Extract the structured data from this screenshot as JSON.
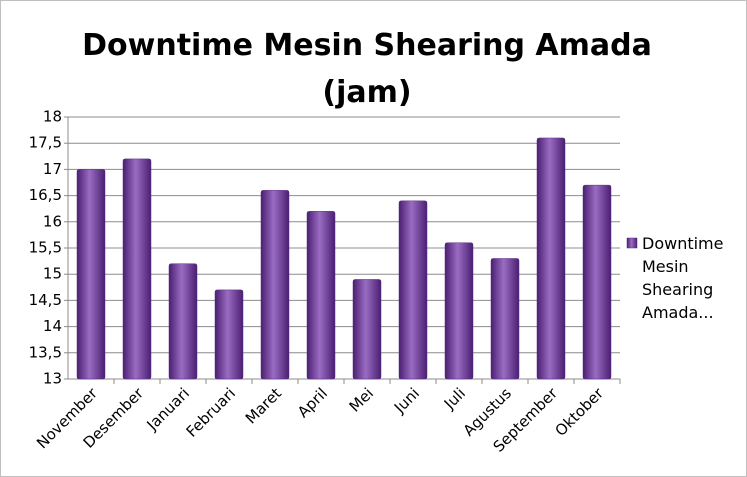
{
  "chart_data": {
    "type": "bar",
    "title": "Downtime Mesin Shearing Amada (jam)",
    "categories": [
      "November",
      "Desember",
      "Januari",
      "Februari",
      "Maret",
      "April",
      "Mei",
      "Juni",
      "Juli",
      "Agustus",
      "September",
      "Oktober"
    ],
    "series": [
      {
        "name": "Downtime Mesin Shearing Amada...",
        "color": "#7030a0",
        "values": [
          17,
          17.2,
          15.2,
          14.7,
          16.6,
          16.2,
          14.9,
          16.4,
          15.6,
          15.3,
          17.6,
          16.7
        ]
      }
    ],
    "ylim": [
      13,
      18
    ],
    "yticks": [
      13,
      {
        "value": 13.5,
        "label": "13,5"
      },
      14,
      {
        "value": 14.5,
        "label": "14,5"
      },
      15,
      {
        "value": 15.5,
        "label": "15,5"
      },
      16,
      {
        "value": 16.5,
        "label": "16,5"
      },
      17,
      {
        "value": 17.5,
        "label": "17,5"
      },
      18
    ],
    "grid": true,
    "legend": "right"
  }
}
